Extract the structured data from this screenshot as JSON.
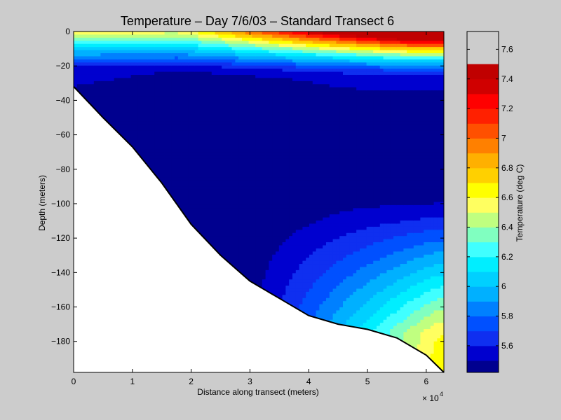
{
  "chart_data": {
    "type": "contour",
    "title": "Temperature – Day 7/6/03 – Standard Transect 6",
    "xlabel": "Distance along transect (meters)",
    "ylabel": "Depth (meters)",
    "x_multiplier_label": "× 10",
    "x_multiplier_exponent": "4",
    "x_ticks": [
      "0",
      "1",
      "2",
      "3",
      "4",
      "5",
      "6"
    ],
    "y_ticks": [
      "0",
      "−20",
      "−40",
      "−60",
      "−80",
      "−100",
      "−120",
      "−140",
      "−160",
      "−180"
    ],
    "xlim": [
      0,
      63000
    ],
    "ylim": [
      -198,
      0
    ],
    "colorbar": {
      "label": "Temperature (deg C)",
      "ticks": [
        "5.6",
        "5.8",
        "6",
        "6.2",
        "6.4",
        "6.6",
        "6.8",
        "7",
        "7.2",
        "7.4",
        "7.6"
      ],
      "range": [
        5.42,
        7.72
      ],
      "levels": [
        5.42,
        5.5,
        5.6,
        5.7,
        5.8,
        5.9,
        6.0,
        6.1,
        6.2,
        6.3,
        6.4,
        6.5,
        6.6,
        6.7,
        6.8,
        6.9,
        7.0,
        7.1,
        7.2,
        7.3,
        7.4,
        7.5,
        7.6,
        7.72
      ],
      "colors": [
        "#00008f",
        "#0000cf",
        "#0f2ff0",
        "#0050ff",
        "#0080ff",
        "#00b0ff",
        "#00d0ff",
        "#00eeff",
        "#40ffff",
        "#80ffc0",
        "#c0ff80",
        "#ffff60",
        "#ffff00",
        "#ffd000",
        "#ffb000",
        "#ff8000",
        "#ff5000",
        "#ff2000",
        "#ff0000",
        "#d00000",
        "#c00000"
      ]
    },
    "bottom_profile": {
      "x": [
        0,
        5000,
        10000,
        15000,
        20000,
        25000,
        30000,
        35000,
        40000,
        45000,
        50000,
        55000,
        60000,
        63000
      ],
      "depth": [
        -32,
        -50,
        -67,
        -88,
        -112,
        -130,
        -145,
        -155,
        -165,
        -170,
        -173,
        -178,
        -188,
        -198
      ]
    }
  }
}
